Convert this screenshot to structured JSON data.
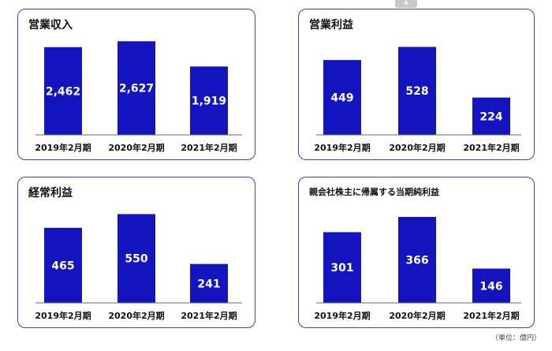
{
  "unit_note": "（単位：億円）",
  "colors": {
    "bar": "#1414bf",
    "panel_border": "#3a43b8",
    "axis": "#666666"
  },
  "chart_data": [
    {
      "type": "bar",
      "title": "営業収入",
      "categories": [
        "2019年2月期",
        "2020年2月期",
        "2021年2月期"
      ],
      "values": [
        2462,
        2627,
        1919
      ],
      "value_labels": [
        "2,462",
        "2,627",
        "1,919"
      ],
      "ylim": [
        0,
        2900
      ],
      "grid": false,
      "legend": "none"
    },
    {
      "type": "bar",
      "title": "営業利益",
      "categories": [
        "2019年2月期",
        "2020年2月期",
        "2021年2月期"
      ],
      "values": [
        449,
        528,
        224
      ],
      "value_labels": [
        "449",
        "528",
        "224"
      ],
      "ylim": [
        0,
        620
      ],
      "grid": false,
      "legend": "none"
    },
    {
      "type": "bar",
      "title": "経常利益",
      "categories": [
        "2019年2月期",
        "2020年2月期",
        "2021年2月期"
      ],
      "values": [
        465,
        550,
        241
      ],
      "value_labels": [
        "465",
        "550",
        "241"
      ],
      "ylim": [
        0,
        640
      ],
      "grid": false,
      "legend": "none"
    },
    {
      "type": "bar",
      "title": "親会社株主に帰属する当期純利益",
      "categories": [
        "2019年2月期",
        "2020年2月期",
        "2021年2月期"
      ],
      "values": [
        301,
        366,
        146
      ],
      "value_labels": [
        "301",
        "366",
        "146"
      ],
      "ylim": [
        0,
        440
      ],
      "grid": false,
      "legend": "none"
    }
  ]
}
